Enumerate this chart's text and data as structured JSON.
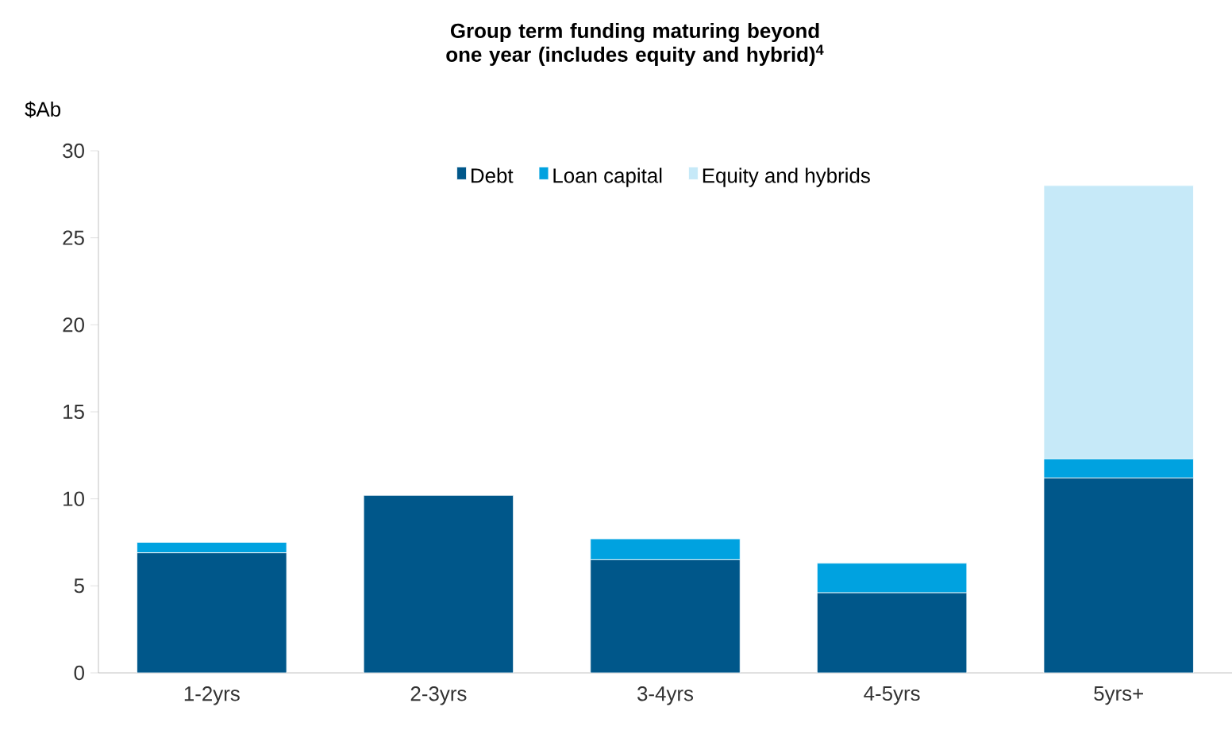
{
  "chart_data": {
    "type": "bar",
    "title": "Group term funding maturing beyond one year (includes equity and hybrid)$^{4}$",
    "ylabel": "$Ab",
    "categories": [
      "1-2yrs",
      "2-3yrs",
      "3-4yrs",
      "4-5yrs",
      "5yrs+"
    ],
    "series": [
      {
        "name": "Debt",
        "color": "#00578a",
        "values": [
          6.9,
          10.2,
          6.5,
          4.6,
          11.2
        ]
      },
      {
        "name": "Loan capital",
        "color": "#00a2e0",
        "values": [
          0.6,
          0,
          1.2,
          1.7,
          1.1
        ]
      },
      {
        "name": "Equity and hybrids",
        "color": "#c6e9f8",
        "values": [
          0,
          0,
          0,
          0,
          15.7
        ]
      }
    ],
    "stacked": true,
    "ylim": [
      0,
      30
    ],
    "yticks": [
      0,
      5,
      10,
      15,
      20,
      25,
      30
    ],
    "grid": false,
    "legend": "top"
  }
}
